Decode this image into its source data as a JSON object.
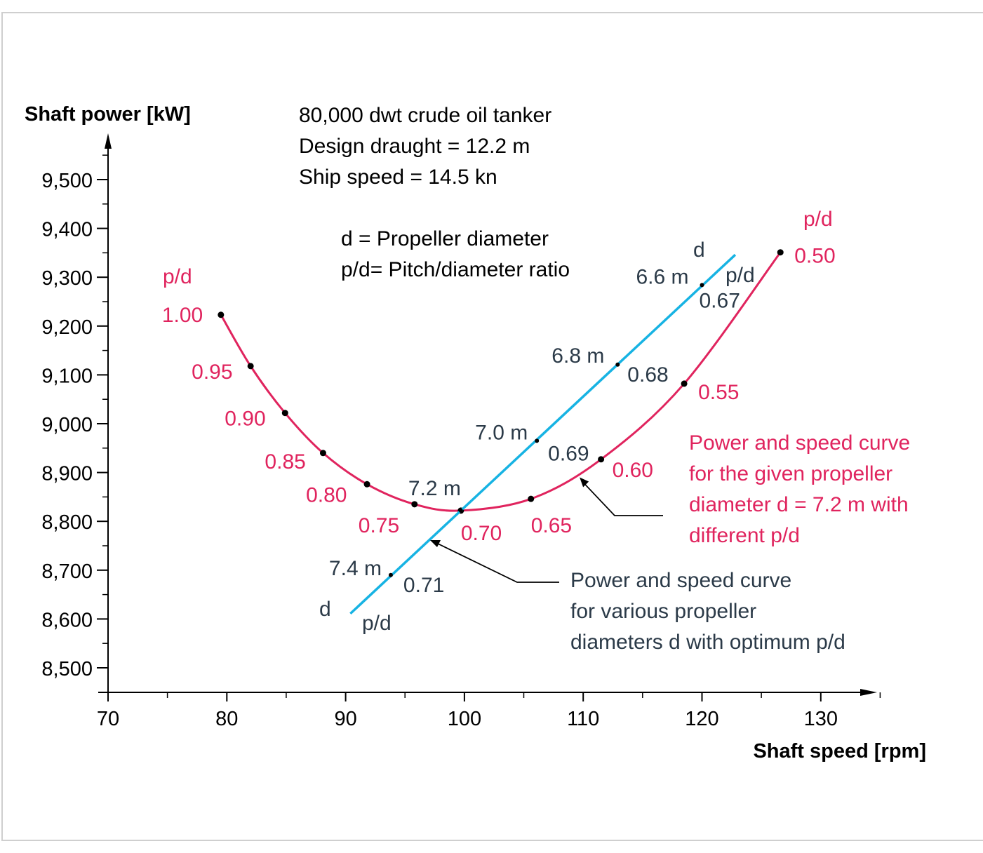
{
  "chart_data": {
    "type": "line",
    "xlabel": "Shaft speed [rpm]",
    "ylabel": "Shaft power [kW]",
    "xlim": [
      70,
      135
    ],
    "ylim": [
      8450,
      9600
    ],
    "x_ticks": [
      70,
      80,
      90,
      100,
      110,
      120,
      130
    ],
    "x_tick_labels": [
      "70",
      "80",
      "90",
      "100",
      "110",
      "120",
      "130"
    ],
    "y_ticks": [
      8500,
      8600,
      8700,
      8800,
      8900,
      9000,
      9100,
      9200,
      9300,
      9400,
      9500
    ],
    "y_tick_labels": [
      "8,500",
      "8,600",
      "8,700",
      "8,800",
      "8,900",
      "9,000",
      "9,100",
      "9,200",
      "9,300",
      "9,400",
      "9,500"
    ],
    "grid": false,
    "info_lines": [
      "80,000 dwt crude oil tanker",
      "Design draught  = 12.2 m",
      "Ship speed = 14.5 kn"
    ],
    "legend_lines": [
      "d    =  Propeller diameter",
      "p/d=  Pitch/diameter ratio"
    ],
    "series": [
      {
        "color": "#e0245e",
        "header": "p/d",
        "end_header": "p/d",
        "points": [
          {
            "x": 79.5,
            "y": 9223,
            "label": "1.00"
          },
          {
            "x": 82.0,
            "y": 9118,
            "label": "0.95"
          },
          {
            "x": 84.9,
            "y": 9022,
            "label": "0.90"
          },
          {
            "x": 88.1,
            "y": 8940,
            "label": "0.85"
          },
          {
            "x": 91.8,
            "y": 8876,
            "label": "0.80"
          },
          {
            "x": 95.8,
            "y": 8835,
            "label": "0.75"
          },
          {
            "x": 99.7,
            "y": 8822,
            "label": "0.70"
          },
          {
            "x": 105.6,
            "y": 8846,
            "label": "0.65"
          },
          {
            "x": 111.5,
            "y": 8927,
            "label": "0.60"
          },
          {
            "x": 118.5,
            "y": 9082,
            "label": "0.55"
          },
          {
            "x": 126.6,
            "y": 9351,
            "label": "0.50"
          }
        ],
        "annotation": [
          "Power and speed curve",
          "for the given propeller",
          "diameter d = 7.2 m with",
          "different p/d"
        ]
      },
      {
        "color": "#17b3e3",
        "start": {
          "x": 90.4,
          "y": 8611
        },
        "end": {
          "x": 122.8,
          "y": 9346
        },
        "start_labels": [
          "d",
          "p/d"
        ],
        "end_labels": [
          "d",
          "p/d"
        ],
        "points": [
          {
            "x": 93.8,
            "y": 8690,
            "d": "7.4 m",
            "pd": "0.71"
          },
          {
            "x": 99.7,
            "y": 8822,
            "d": "7.2 m",
            "pd": ""
          },
          {
            "x": 106.1,
            "y": 8965,
            "d": "7.0 m",
            "pd": "0.69"
          },
          {
            "x": 112.9,
            "y": 9121,
            "d": "6.8 m",
            "pd": "0.68"
          },
          {
            "x": 120.0,
            "y": 9284,
            "d": "6.6 m",
            "pd": "0.67"
          }
        ],
        "annotation": [
          "Power and speed curve",
          "for various propeller",
          "diameters d with optimum p/d"
        ]
      }
    ]
  }
}
